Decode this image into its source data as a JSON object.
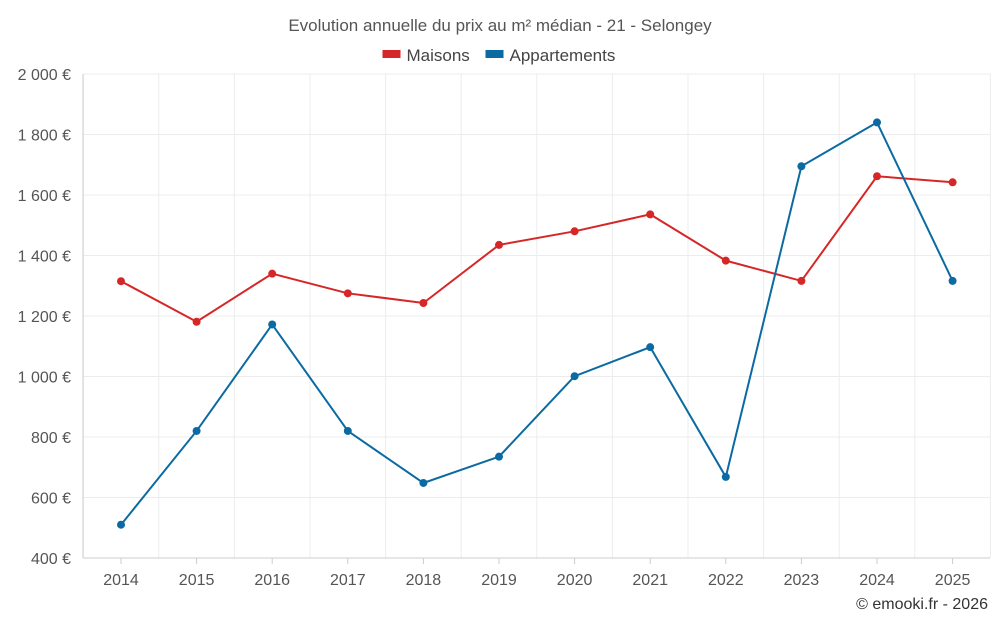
{
  "chart_data": {
    "type": "line",
    "title": "Evolution annuelle du prix au m² médian - 21 - Selongey",
    "categories": [
      "2014",
      "2015",
      "2016",
      "2017",
      "2018",
      "2019",
      "2020",
      "2021",
      "2022",
      "2023",
      "2024",
      "2025"
    ],
    "series": [
      {
        "name": "Maisons",
        "color": "#d62728",
        "values": [
          1315,
          1181,
          1340,
          1275,
          1243,
          1435,
          1480,
          1536,
          1383,
          1316,
          1662,
          1642
        ]
      },
      {
        "name": "Appartements",
        "color": "#0a6aa1",
        "values": [
          510,
          820,
          1172,
          820,
          648,
          735,
          1001,
          1097,
          668,
          1695,
          1840,
          1316
        ]
      }
    ],
    "ylim": [
      400,
      2000
    ],
    "yticks": [
      400,
      600,
      800,
      1000,
      1200,
      1400,
      1600,
      1800,
      2000
    ],
    "ytick_labels": [
      "400 €",
      "600 €",
      "800 €",
      "1 000 €",
      "1 200 €",
      "1 400 €",
      "1 600 €",
      "1 800 €",
      "2 000 €"
    ],
    "xlabel": "",
    "ylabel": "",
    "legend": "top-center",
    "grid": true
  },
  "credit": "© emooki.fr - 2026"
}
